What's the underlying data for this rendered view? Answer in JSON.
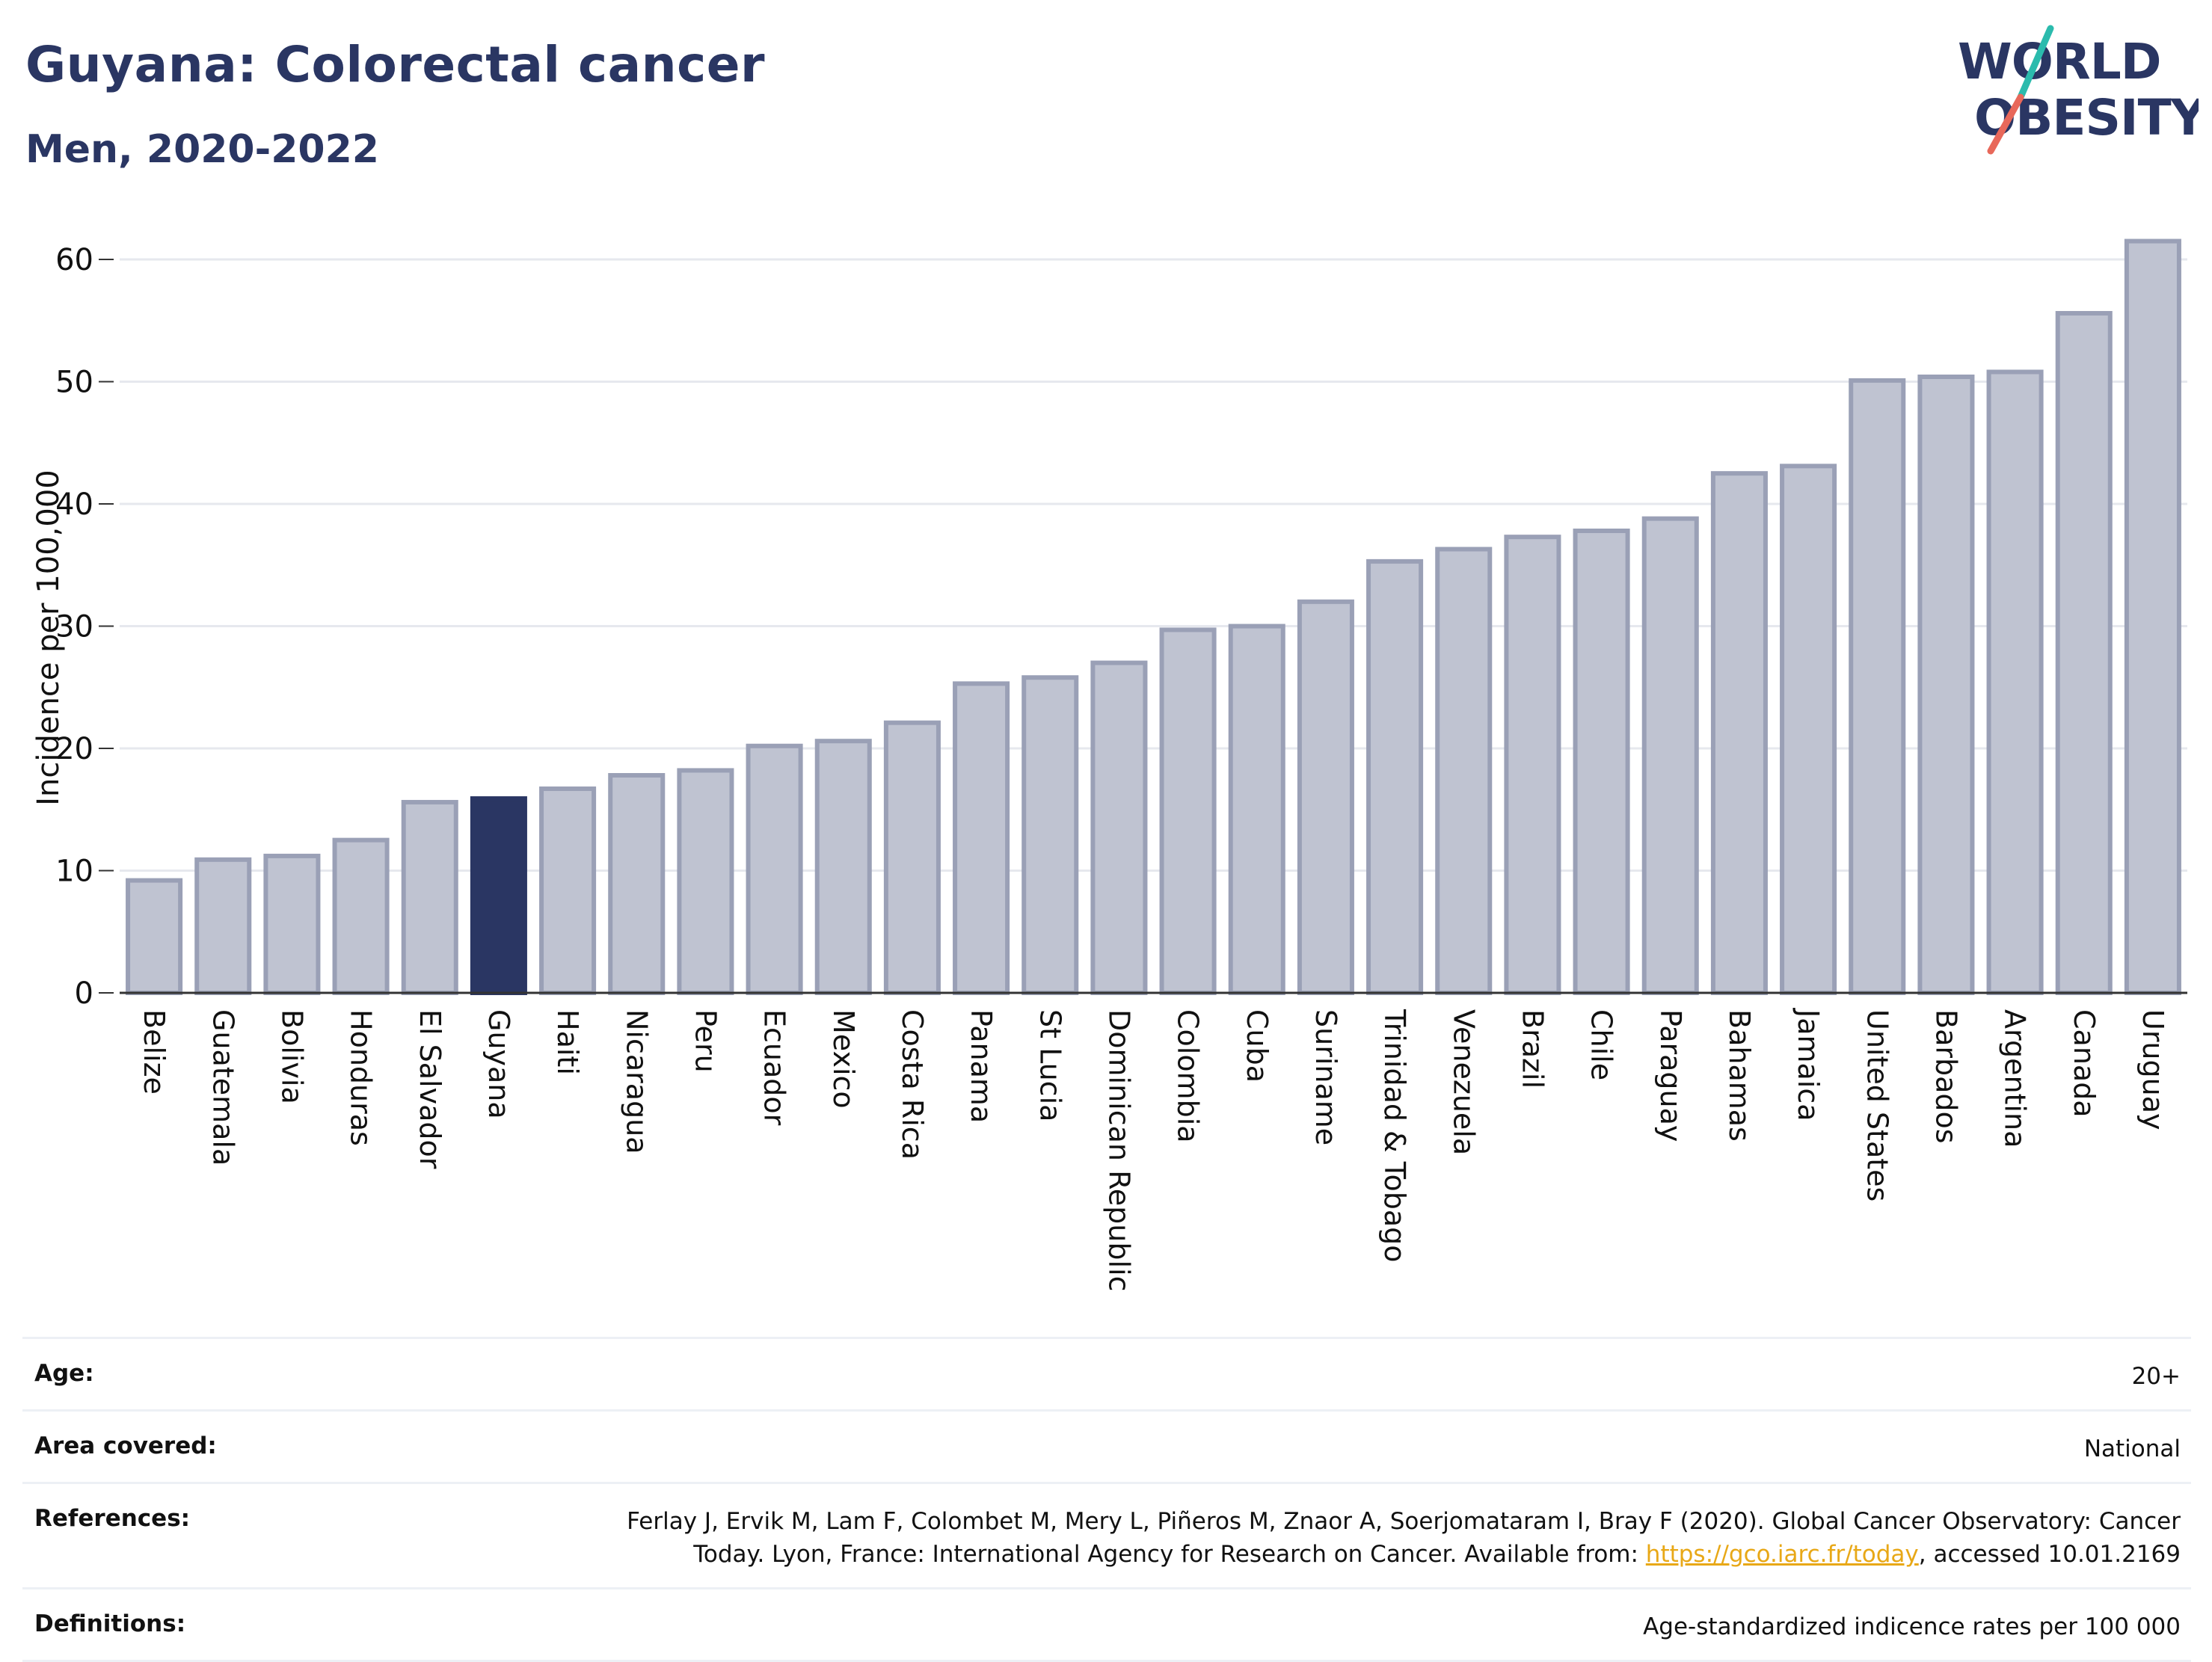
{
  "header": {
    "title": "Guyana: Colorectal cancer",
    "subtitle": "Men, 2020-2022"
  },
  "logo": {
    "line1": "WORLD",
    "line2": "OBESITY",
    "teal": "#2bbbad",
    "coral": "#e8685a",
    "navy": "#2a3663"
  },
  "colors": {
    "highlight": "#2a3663",
    "bar_fill": "#bfc3d1",
    "bar_stroke": "#9aa0b6",
    "grid": "#e6e8ee",
    "axis": "#333333"
  },
  "chart_data": {
    "type": "bar",
    "ylabel": "Incidence per 100,000",
    "xlabel": "",
    "ylim": [
      0,
      63
    ],
    "yticks": [
      0,
      10,
      20,
      30,
      40,
      50,
      60
    ],
    "grid": true,
    "highlight": "Guyana",
    "categories": [
      "Belize",
      "Guatemala",
      "Bolivia",
      "Honduras",
      "El Salvador",
      "Guyana",
      "Haiti",
      "Nicaragua",
      "Peru",
      "Ecuador",
      "Mexico",
      "Costa Rica",
      "Panama",
      "St Lucia",
      "Dominican Republic",
      "Colombia",
      "Cuba",
      "Suriname",
      "Trinidad & Tobago",
      "Venezuela",
      "Brazil",
      "Chile",
      "Paraguay",
      "Bahamas",
      "Jamaica",
      "United States",
      "Barbados",
      "Argentina",
      "Canada",
      "Uruguay"
    ],
    "values": [
      9.2,
      10.9,
      11.2,
      12.5,
      15.6,
      15.9,
      16.7,
      17.8,
      18.2,
      20.2,
      20.6,
      22.1,
      25.3,
      25.8,
      27.0,
      29.7,
      30.0,
      32.0,
      35.3,
      36.3,
      37.3,
      37.8,
      38.8,
      42.5,
      43.1,
      50.1,
      50.4,
      50.8,
      55.6,
      61.5
    ]
  },
  "info": {
    "age_label": "Age:",
    "age_value": "20+",
    "area_label": "Area covered:",
    "area_value": "National",
    "references_label": "References:",
    "references_line1": "Ferlay J, Ervik M, Lam F, Colombet M, Mery L, Piñeros M, Znaor A, Soerjomataram I, Bray F (2020). Global Cancer Observatory: Cancer",
    "references_line2_pre": "Today. Lyon, France: International Agency for Research on Cancer. Available from: ",
    "references_link": "https://gco.iarc.fr/today",
    "references_line2_post": ", accessed 10.01.2169",
    "definitions_label": "Definitions:",
    "definitions_value": "Age-standardized indicence rates per 100 000"
  }
}
